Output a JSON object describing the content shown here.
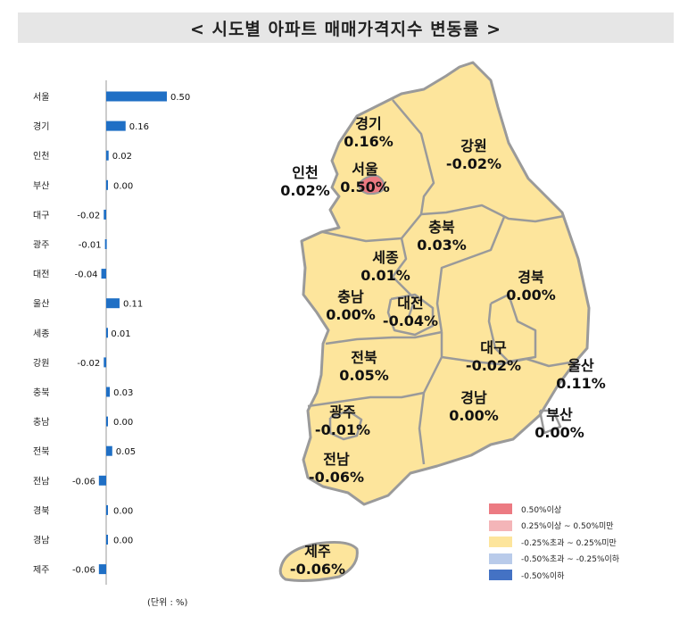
{
  "title": "< 시도별 아파트 매매가격지수 변동률 >",
  "unit_note": "(단위 : %)",
  "colors": {
    "bar": "#1f6fc5",
    "map_fill": "#fde59c",
    "map_highlight": "#ec7a82",
    "map_border": "#9a9a9a",
    "title_background": "#e6e6e6"
  },
  "chart_data": {
    "type": "bar",
    "orientation": "horizontal",
    "categories": [
      "서울",
      "경기",
      "인천",
      "부산",
      "대구",
      "광주",
      "대전",
      "울산",
      "세종",
      "강원",
      "충북",
      "충남",
      "전북",
      "전남",
      "경북",
      "경남",
      "제주"
    ],
    "values": [
      0.5,
      0.16,
      0.02,
      0.0,
      -0.02,
      -0.01,
      -0.04,
      0.11,
      0.01,
      -0.02,
      0.03,
      0.0,
      0.05,
      -0.06,
      0.0,
      0.0,
      -0.06
    ],
    "value_labels": [
      "0.50",
      "0.16",
      "0.02",
      "0.00",
      "-0.02",
      "-0.01",
      "-0.04",
      "0.11",
      "0.01",
      "-0.02",
      "0.03",
      "0.00",
      "0.05",
      "-0.06",
      "0.00",
      "0.00",
      "-0.06"
    ],
    "xlim": [
      -0.06,
      0.5
    ],
    "grid": false,
    "legend": "none"
  },
  "map_labels": [
    {
      "name": "경기",
      "value": "0.16%"
    },
    {
      "name": "강원",
      "value": "-0.02%"
    },
    {
      "name": "인천",
      "value": "0.02%"
    },
    {
      "name": "서울",
      "value": "0.50%"
    },
    {
      "name": "충북",
      "value": "0.03%"
    },
    {
      "name": "세종",
      "value": "0.01%"
    },
    {
      "name": "경북",
      "value": "0.00%"
    },
    {
      "name": "충남",
      "value": "0.00%"
    },
    {
      "name": "대전",
      "value": "-0.04%"
    },
    {
      "name": "대구",
      "value": "-0.02%"
    },
    {
      "name": "울산",
      "value": "0.11%"
    },
    {
      "name": "전북",
      "value": "0.05%"
    },
    {
      "name": "경남",
      "value": "0.00%"
    },
    {
      "name": "광주",
      "value": "-0.01%"
    },
    {
      "name": "부산",
      "value": "0.00%"
    },
    {
      "name": "전남",
      "value": "-0.06%"
    },
    {
      "name": "제주",
      "value": "-0.06%"
    }
  ],
  "legend": [
    {
      "label": "0.50%이상",
      "color": "#ec7a82"
    },
    {
      "label": "0.25%이상 ~ 0.50%미만",
      "color": "#f4b5b8"
    },
    {
      "label": "-0.25%초과 ~ 0.25%미만",
      "color": "#fde59c"
    },
    {
      "label": "-0.50%초과 ~ -0.25%이하",
      "color": "#b9cbea"
    },
    {
      "label": "-0.50%이하",
      "color": "#4472c4"
    }
  ]
}
